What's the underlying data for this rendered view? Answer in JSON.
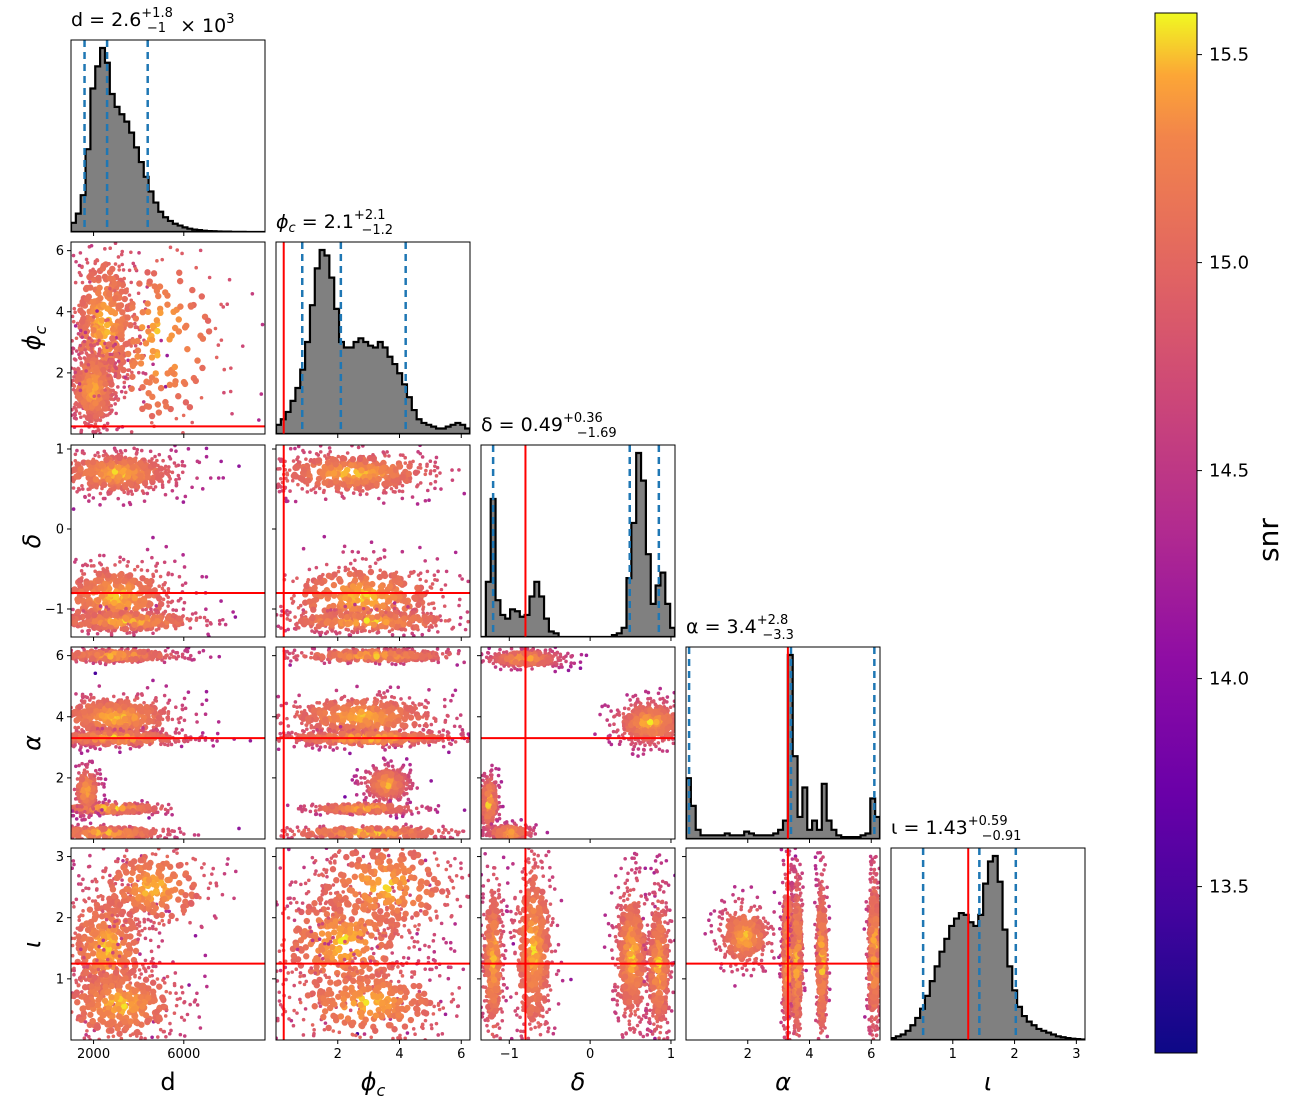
{
  "chart_data": {
    "type": "corner",
    "parameters": [
      {
        "key": "d",
        "label": "d",
        "summary": {
          "prefix": "d = ",
          "median": "2.6",
          "plus": "+1.8",
          "minus": "−1",
          "suffix": " × 10",
          "exp": "3"
        },
        "range": [
          1000,
          9600
        ],
        "ticks": [
          2000,
          6000
        ],
        "tick_labels": [
          "2000",
          "6000"
        ],
        "truth": null,
        "quantiles": [
          1600,
          2600,
          4400
        ]
      },
      {
        "key": "phi_c",
        "label": "ϕ",
        "label_sub": "c",
        "summary": {
          "prefix": "ϕ",
          "sub": "c",
          "eq": " = ",
          "median": "2.1",
          "plus": "+2.1",
          "minus": "−1.2"
        },
        "range": [
          0.0,
          6.283
        ],
        "ticks": [
          2,
          4,
          6
        ],
        "tick_labels": [
          "2",
          "4",
          "6"
        ],
        "truth": 0.25,
        "quantiles": [
          0.85,
          2.1,
          4.2
        ]
      },
      {
        "key": "delta",
        "label": "δ",
        "summary": {
          "prefix": "δ = ",
          "median": "0.49",
          "plus": "+0.36",
          "minus": "−1.69"
        },
        "range": [
          -1.35,
          1.05
        ],
        "ticks": [
          -1,
          0,
          1
        ],
        "tick_labels": [
          "−1",
          "0",
          "1"
        ],
        "truth": -0.8,
        "quantiles": [
          -1.2,
          0.49,
          0.85
        ]
      },
      {
        "key": "alpha",
        "label": "α",
        "summary": {
          "prefix": "α = ",
          "median": "3.4",
          "plus": "+2.8",
          "minus": "−3.3"
        },
        "range": [
          0.0,
          6.283
        ],
        "ticks": [
          2,
          4,
          6
        ],
        "tick_labels": [
          "2",
          "4",
          "6"
        ],
        "truth": 3.3,
        "quantiles": [
          0.1,
          3.4,
          6.1
        ]
      },
      {
        "key": "iota",
        "label": "ι",
        "summary": {
          "prefix": "ι = ",
          "median": "1.43",
          "plus": "+0.59",
          "minus": "−0.91"
        },
        "range": [
          0.0,
          3.14
        ],
        "ticks": [
          1,
          2,
          3
        ],
        "tick_labels": [
          "1",
          "2",
          "3"
        ],
        "truth": 1.25,
        "quantiles": [
          0.52,
          1.43,
          2.02
        ]
      }
    ],
    "histograms": {
      "d": [
        0.05,
        0.1,
        0.2,
        0.45,
        0.78,
        0.9,
        1.0,
        0.92,
        0.75,
        0.68,
        0.64,
        0.6,
        0.54,
        0.46,
        0.38,
        0.3,
        0.22,
        0.16,
        0.11,
        0.08,
        0.06,
        0.045,
        0.035,
        0.025,
        0.018,
        0.013,
        0.01,
        0.007,
        0.005,
        0.004,
        0.003,
        0.002,
        0.002,
        0.001,
        0.001,
        0.001,
        0,
        0,
        0,
        0
      ],
      "phi_c": [
        0.05,
        0.08,
        0.12,
        0.18,
        0.25,
        0.35,
        0.5,
        0.7,
        0.9,
        1.0,
        0.97,
        0.85,
        0.68,
        0.5,
        0.47,
        0.47,
        0.5,
        0.52,
        0.5,
        0.48,
        0.47,
        0.5,
        0.47,
        0.42,
        0.38,
        0.33,
        0.27,
        0.2,
        0.13,
        0.08,
        0.06,
        0.05,
        0.04,
        0.03,
        0.03,
        0.04,
        0.05,
        0.06,
        0.05,
        0.03
      ],
      "delta": [
        0.0,
        0.3,
        0.75,
        0.2,
        0.12,
        0.1,
        0.15,
        0.14,
        0.11,
        0.12,
        0.22,
        0.3,
        0.22,
        0.1,
        0.03,
        0.02,
        0.0,
        0.0,
        0.0,
        0.0,
        0.0,
        0.0,
        0.0,
        0.0,
        0.0,
        0.0,
        0.0,
        0.01,
        0.02,
        0.05,
        0.32,
        0.62,
        1.0,
        0.85,
        0.45,
        0.18,
        0.28,
        0.35,
        0.18,
        0.05
      ],
      "alpha": [
        0.33,
        0.18,
        0.05,
        0.02,
        0.02,
        0.02,
        0.02,
        0.02,
        0.03,
        0.02,
        0.02,
        0.02,
        0.04,
        0.03,
        0.02,
        0.02,
        0.02,
        0.02,
        0.03,
        0.05,
        0.1,
        1.0,
        0.45,
        0.12,
        0.28,
        0.05,
        0.1,
        0.05,
        0.3,
        0.1,
        0.05,
        0.02,
        0.01,
        0.01,
        0.01,
        0.01,
        0.02,
        0.03,
        0.22,
        0.12
      ],
      "iota": [
        0.01,
        0.02,
        0.03,
        0.05,
        0.08,
        0.12,
        0.17,
        0.24,
        0.32,
        0.4,
        0.48,
        0.55,
        0.62,
        0.66,
        0.69,
        0.68,
        0.64,
        0.62,
        0.68,
        0.85,
        0.97,
        1.0,
        0.86,
        0.6,
        0.4,
        0.27,
        0.18,
        0.13,
        0.1,
        0.08,
        0.06,
        0.05,
        0.04,
        0.03,
        0.02,
        0.015,
        0.01,
        0.007,
        0.005,
        0.003
      ]
    },
    "colorbar": {
      "label": "snr",
      "min": 13.1,
      "max": 15.6,
      "ticks": [
        13.5,
        14.0,
        14.5,
        15.0,
        15.5
      ],
      "tick_labels": [
        "13.5",
        "14.0",
        "14.5",
        "15.0",
        "15.5"
      ],
      "colormap": "plasma"
    },
    "colors": {
      "hist_fill": "#808080",
      "hist_edge": "#000000",
      "quantile_line": "#1f77b4",
      "truth_line": "#ff0000"
    },
    "style": {
      "legend": "none",
      "grid": false
    }
  }
}
